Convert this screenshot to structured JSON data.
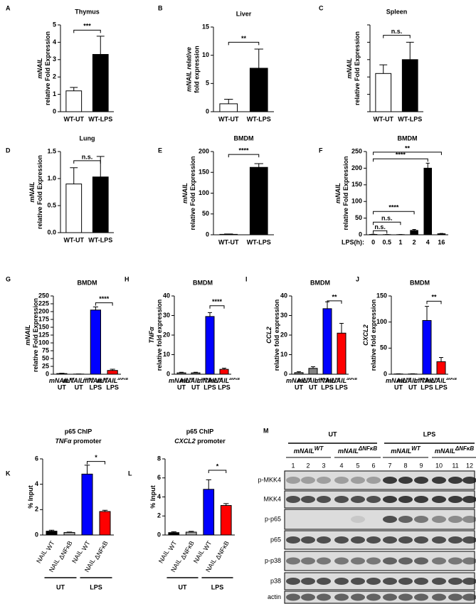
{
  "chart_data": [
    {
      "panel": "A",
      "type": "bar",
      "title": "Thymus",
      "ylabel": [
        "mNAIL",
        "relative Fold Expression"
      ],
      "categories": [
        "WT-UT",
        "WT-LPS"
      ],
      "values": [
        1.2,
        3.3
      ],
      "errors": [
        0.2,
        1.05
      ],
      "colors": [
        "#ffffff",
        "#000000"
      ],
      "ylim": [
        0,
        5
      ],
      "yticks": [
        0,
        1,
        2,
        3,
        4,
        5
      ],
      "annotations": [
        {
          "text": "***",
          "from": 0,
          "to": 1,
          "y": 4.7
        }
      ]
    },
    {
      "panel": "B",
      "type": "bar",
      "title": "Liver",
      "ylabel": [
        "mNAIL relative",
        "fold expression"
      ],
      "categories": [
        "WT-UT",
        "WT-LPS"
      ],
      "values": [
        1.4,
        7.7
      ],
      "errors": [
        0.8,
        3.4
      ],
      "colors": [
        "#ffffff",
        "#000000"
      ],
      "ylim": [
        0,
        15
      ],
      "yticks": [
        0,
        5,
        10,
        15
      ],
      "annotations": [
        {
          "text": "**",
          "from": 0,
          "to": 1,
          "y": 12.3
        }
      ]
    },
    {
      "panel": "C",
      "type": "bar",
      "title": "Spleen",
      "ylabel": [
        "mNAIL",
        "relative Fold Expression"
      ],
      "categories": [
        "WT-UT",
        "WT-LPS"
      ],
      "values": [
        1.1,
        1.5
      ],
      "errors": [
        0.25,
        0.5
      ],
      "colors": [
        "#ffffff",
        "#000000"
      ],
      "ylim": [
        0,
        2.5
      ],
      "yticks": [
        0,
        0.5,
        1,
        1.5,
        2,
        2.5
      ],
      "ytick_labels": false,
      "annotations": [
        {
          "text": "n.s.",
          "from": 0,
          "to": 1,
          "y": 2.2
        }
      ]
    },
    {
      "panel": "D",
      "type": "bar",
      "title": "Lung",
      "ylabel": [
        "mNAIL",
        "relative Fold Expression"
      ],
      "categories": [
        "WT-UT",
        "WT-LPS"
      ],
      "values": [
        0.9,
        1.03
      ],
      "errors": [
        0.3,
        0.38
      ],
      "colors": [
        "#ffffff",
        "#000000"
      ],
      "ylim": [
        0,
        1.5
      ],
      "yticks": [
        {
          "value": 0,
          "label": "0.0"
        },
        {
          "value": 0.5,
          "label": "0.5"
        },
        {
          "value": 1,
          "label": "1.0"
        },
        {
          "value": 1.5,
          "label": "1.5"
        }
      ],
      "annotations": [
        {
          "text": "n.s.",
          "from": 0,
          "to": 1,
          "y": 1.33
        }
      ]
    },
    {
      "panel": "E",
      "type": "bar",
      "title": "BMDM",
      "ylabel": [
        "mNAIL",
        "relative Fold Expression"
      ],
      "categories": [
        "WT-UT",
        "WT-LPS"
      ],
      "values": [
        1,
        162
      ],
      "errors": [
        1,
        9
      ],
      "colors": [
        "#ffffff",
        "#000000"
      ],
      "ylim": [
        0,
        200
      ],
      "yticks": [
        0,
        50,
        100,
        150,
        200
      ],
      "annotations": [
        {
          "text": "****",
          "from": 0,
          "to": 1,
          "y": 193
        }
      ]
    },
    {
      "panel": "F",
      "type": "bar",
      "title": "BMDM",
      "ylabel": [
        "mNAIL",
        "relative Fold Expression"
      ],
      "xlabel": "LPS(h):",
      "categories": [
        "0",
        "0.5",
        "1",
        "2",
        "4",
        "16"
      ],
      "values": [
        1,
        0.5,
        0.5,
        13,
        200,
        3
      ],
      "errors": [
        0.5,
        0.3,
        0.3,
        3,
        15,
        1
      ],
      "colors": [
        "#000000",
        "#000000",
        "#000000",
        "#000000",
        "#000000",
        "#000000"
      ],
      "ylim": [
        0,
        250
      ],
      "yticks": [
        0,
        50,
        100,
        150,
        200,
        250
      ],
      "annotations": [
        {
          "text": "n.s.",
          "from": 0,
          "to": 1,
          "y": 12
        },
        {
          "text": "n.s.",
          "from": 0,
          "to": 2,
          "y": 38
        },
        {
          "text": "****",
          "from": 0,
          "to": 3,
          "y": 70
        },
        {
          "text": "****",
          "from": 0,
          "to": 4,
          "y": 228
        },
        {
          "text": "**",
          "from": 0,
          "to": 5,
          "y": 248
        }
      ]
    },
    {
      "panel": "G",
      "type": "bar",
      "title": "BMDM",
      "ylabel": [
        "mNAIL",
        "relative Fold Expression"
      ],
      "categories": [
        {
          "label": "mNAIL",
          "sup": "WT",
          "group": "UT"
        },
        {
          "label": "mNAIL",
          "sup": "ΔNFκB",
          "group": "UT"
        },
        {
          "label": "mNAIL",
          "sup": "WT",
          "group": "LPS"
        },
        {
          "label": "mNAIL",
          "sup": "ΔNFκB",
          "group": "LPS"
        }
      ],
      "values": [
        2,
        0.5,
        205,
        12
      ],
      "errors": [
        1,
        0.3,
        10,
        4
      ],
      "colors": [
        "#808080",
        "#808080",
        "#0000ff",
        "#ff0000"
      ],
      "ylim": [
        0,
        250
      ],
      "yticks": [
        0,
        25,
        50,
        75,
        100,
        125,
        150,
        175,
        200,
        225,
        250
      ],
      "annotations": [
        {
          "text": "****",
          "from": 2,
          "to": 3,
          "y": 228
        }
      ]
    },
    {
      "panel": "H",
      "type": "bar",
      "title": "BMDM",
      "ylabel": [
        "TNFα",
        "relative fold expression"
      ],
      "categories": [
        {
          "label": "mNAIL",
          "sup": "WT",
          "group": "UT"
        },
        {
          "label": "mNAIL",
          "sup": "ΔNFκB",
          "group": "UT"
        },
        {
          "label": "mNAIL",
          "sup": "WT",
          "group": "LPS"
        },
        {
          "label": "mNAIL",
          "sup": "ΔNFκB",
          "group": "LPS"
        }
      ],
      "values": [
        0.7,
        0.7,
        29.5,
        2.5
      ],
      "errors": [
        0.3,
        0.3,
        2,
        0.6
      ],
      "colors": [
        "#808080",
        "#808080",
        "#0000ff",
        "#ff0000"
      ],
      "ylim": [
        0,
        40
      ],
      "yticks": [
        0,
        10,
        20,
        30,
        40
      ],
      "annotations": [
        {
          "text": "****",
          "from": 2,
          "to": 3,
          "y": 35
        }
      ]
    },
    {
      "panel": "I",
      "type": "bar",
      "title": "BMDM",
      "ylabel": [
        "CCL2",
        "relative fold expression"
      ],
      "categories": [
        {
          "label": "mNAIL",
          "sup": "WT",
          "group": "UT"
        },
        {
          "label": "mNAIL",
          "sup": "ΔNFκB",
          "group": "UT"
        },
        {
          "label": "mNAIL",
          "sup": "WT",
          "group": "LPS"
        },
        {
          "label": "mNAIL",
          "sup": "ΔNFκB",
          "group": "LPS"
        }
      ],
      "values": [
        0.8,
        3,
        33.5,
        21
      ],
      "errors": [
        0.5,
        0.8,
        3.5,
        5
      ],
      "colors": [
        "#808080",
        "#808080",
        "#0000ff",
        "#ff0000"
      ],
      "ylim": [
        0,
        40
      ],
      "yticks": [
        0,
        10,
        20,
        30,
        40
      ],
      "annotations": [
        {
          "text": "**",
          "from": 2,
          "to": 3,
          "y": 37.5
        }
      ]
    },
    {
      "panel": "J",
      "type": "bar",
      "title": "BMDM",
      "ylabel": [
        "CXCL2",
        "relative fold expression"
      ],
      "categories": [
        {
          "label": "mNAIL",
          "sup": "WT",
          "group": "UT"
        },
        {
          "label": "mNAIL",
          "sup": "ΔNFκB",
          "group": "UT"
        },
        {
          "label": "mNAIL",
          "sup": "WT",
          "group": "LPS"
        },
        {
          "label": "mNAIL",
          "sup": "ΔNFκB",
          "group": "LPS"
        }
      ],
      "values": [
        0.5,
        0.5,
        103,
        24
      ],
      "errors": [
        0.3,
        0.3,
        27,
        8
      ],
      "colors": [
        "#808080",
        "#808080",
        "#0000ff",
        "#ff0000"
      ],
      "ylim": [
        0,
        150
      ],
      "yticks": [
        0,
        50,
        100,
        150
      ],
      "annotations": [
        {
          "text": "**",
          "from": 2,
          "to": 3,
          "y": 140
        }
      ]
    },
    {
      "panel": "K",
      "type": "bar",
      "title": "p65 ChIP",
      "subtitle_gene": "TNFα",
      "subtitle": "promoter",
      "ylabel": [
        "% Input"
      ],
      "categories": [
        {
          "label": "NAIL",
          "sub": "WT"
        },
        {
          "label": "NAIL",
          "sub": "ΔNFκB"
        },
        {
          "label": "NAIL",
          "sub": "WT"
        },
        {
          "label": "NAIL",
          "sub": "ΔNFκB"
        }
      ],
      "groups": [
        {
          "name": "UT",
          "from": 0,
          "to": 1
        },
        {
          "name": "LPS",
          "from": 2,
          "to": 3
        }
      ],
      "values": [
        0.3,
        0.2,
        4.8,
        1.85
      ],
      "errors": [
        0.08,
        0.03,
        0.7,
        0.1
      ],
      "colors": [
        "#000000",
        "#a6a6a6",
        "#0000ff",
        "#ff0000"
      ],
      "ylim": [
        0,
        6
      ],
      "yticks": [
        0,
        2,
        4,
        6
      ],
      "annotations": [
        {
          "text": "*",
          "from": 2,
          "to": 3,
          "y": 5.8
        }
      ]
    },
    {
      "panel": "L",
      "type": "bar",
      "title": "p65 ChIP",
      "subtitle_gene": "CXCL2",
      "subtitle": "promoter",
      "ylabel": [
        "% Input"
      ],
      "categories": [
        {
          "label": "NAIL",
          "sub": "WT"
        },
        {
          "label": "NAIL",
          "sub": "ΔNFκB"
        },
        {
          "label": "NAIL",
          "sub": "WT"
        },
        {
          "label": "NAIL",
          "sub": "ΔNFκB"
        }
      ],
      "groups": [
        {
          "name": "UT",
          "from": 0,
          "to": 1
        },
        {
          "name": "LPS",
          "from": 2,
          "to": 3
        }
      ],
      "values": [
        0.25,
        0.3,
        4.8,
        3.1
      ],
      "errors": [
        0.1,
        0.08,
        1.0,
        0.2
      ],
      "colors": [
        "#000000",
        "#a6a6a6",
        "#0000ff",
        "#ff0000"
      ],
      "ylim": [
        0,
        8
      ],
      "yticks": [
        0,
        2,
        4,
        6,
        8
      ],
      "annotations": [
        {
          "text": "*",
          "from": 2,
          "to": 3,
          "y": 6.8
        }
      ]
    }
  ],
  "blot": {
    "panel": "M",
    "groups": [
      "UT",
      "LPS"
    ],
    "genotypes": [
      {
        "label": "mNAIL",
        "sup": "WT"
      },
      {
        "label": "mNAIL",
        "sup": "ΔNFκB"
      },
      {
        "label": "mNAIL",
        "sup": "WT"
      },
      {
        "label": "mNAIL",
        "sup": "ΔNFκB"
      }
    ],
    "lanes": [
      "1",
      "2",
      "3",
      "4",
      "5",
      "6",
      "7",
      "8",
      "9",
      "10",
      "11",
      "12"
    ],
    "rows": [
      "p-MKK4",
      "MKK4",
      "p-p65",
      "p65",
      "p-p38",
      "p38",
      "actin"
    ]
  }
}
